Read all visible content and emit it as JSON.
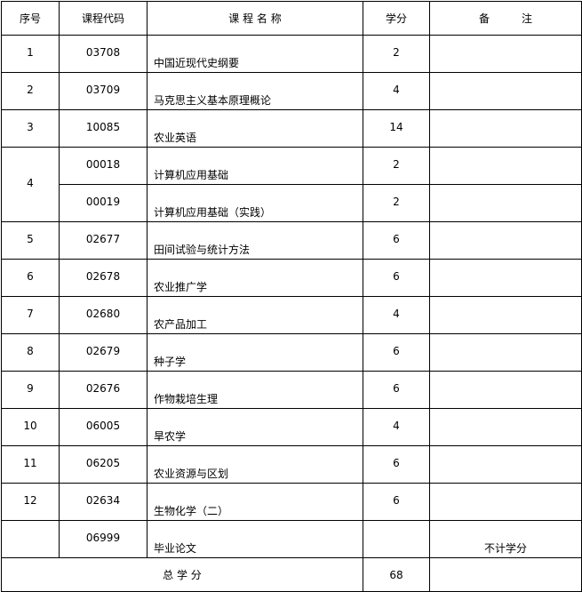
{
  "header": {
    "no": "序号",
    "code": "课程代码",
    "name": "课 程 名 称",
    "credit": "学分",
    "note": "备　　　注"
  },
  "rows": [
    {
      "no": "1",
      "code": "03708",
      "name": "中国近现代史纲要",
      "credit": "2",
      "note": ""
    },
    {
      "no": "2",
      "code": "03709",
      "name": "马克思主义基本原理概论",
      "credit": "4",
      "note": ""
    },
    {
      "no": "3",
      "code": "10085",
      "name": "农业英语",
      "credit": "14",
      "note": ""
    },
    {
      "no": "4",
      "code": "00018",
      "name": "计算机应用基础",
      "credit": "2",
      "note": ""
    },
    {
      "no": "",
      "code": "00019",
      "name": "计算机应用基础（实践）",
      "credit": "2",
      "note": ""
    },
    {
      "no": "5",
      "code": "02677",
      "name": "田间试验与统计方法",
      "credit": "6",
      "note": ""
    },
    {
      "no": "6",
      "code": "02678",
      "name": "农业推广学",
      "credit": "6",
      "note": ""
    },
    {
      "no": "7",
      "code": "02680",
      "name": "农产品加工",
      "credit": "4",
      "note": ""
    },
    {
      "no": "8",
      "code": "02679",
      "name": "种子学",
      "credit": "6",
      "note": ""
    },
    {
      "no": "9",
      "code": "02676",
      "name": "作物栽培生理",
      "credit": "6",
      "note": ""
    },
    {
      "no": "10",
      "code": "06005",
      "name": "旱农学",
      "credit": "4",
      "note": ""
    },
    {
      "no": "11",
      "code": "06205",
      "name": "农业资源与区划",
      "credit": "6",
      "note": ""
    },
    {
      "no": "12",
      "code": "02634",
      "name": "生物化学（二）",
      "credit": "6",
      "note": ""
    },
    {
      "no": "",
      "code": "06999",
      "name": "毕业论文",
      "credit": "",
      "note": "不计学分"
    }
  ],
  "total": {
    "label": "总 学 分",
    "credit": "68"
  }
}
